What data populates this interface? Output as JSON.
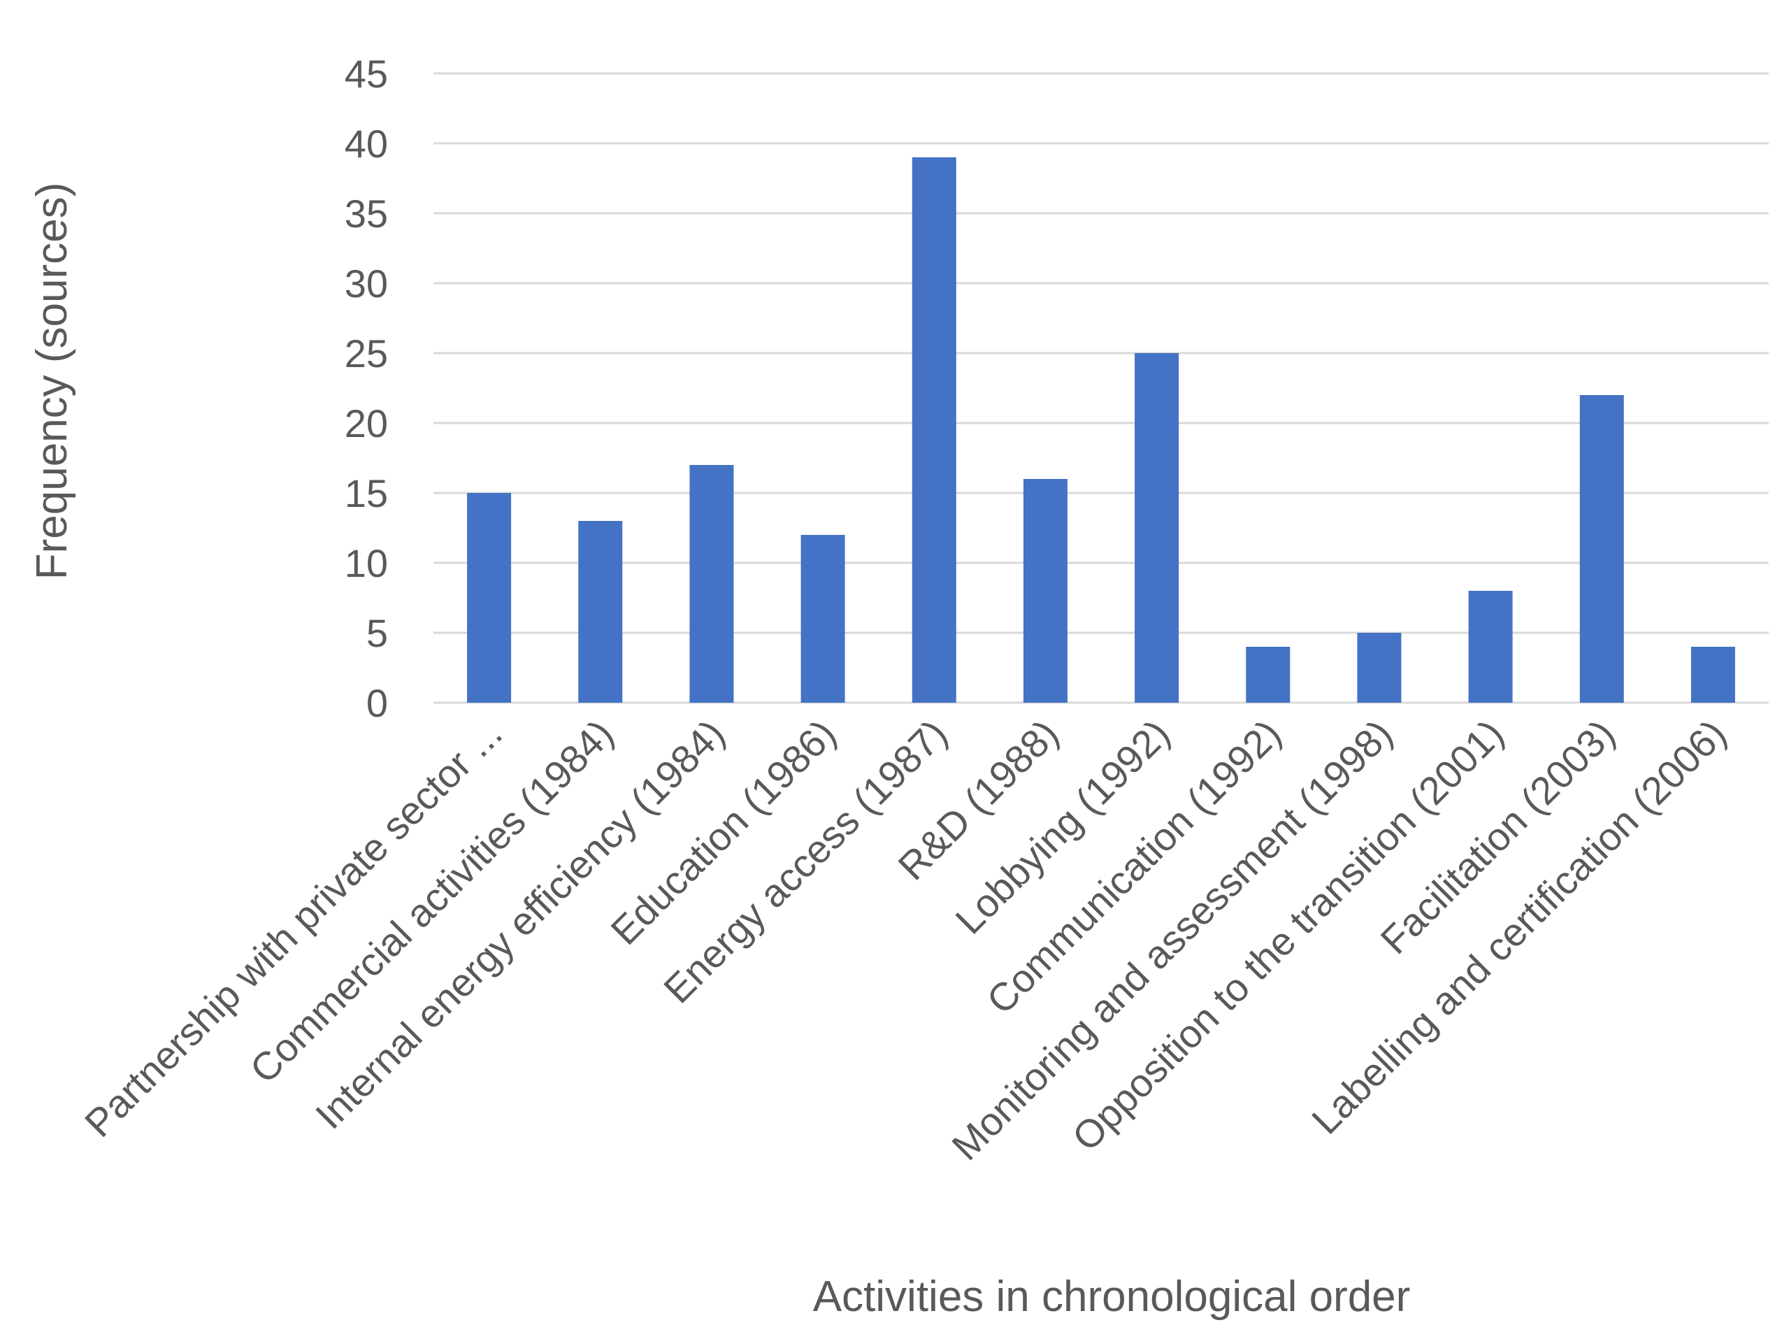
{
  "chart_data": {
    "type": "bar",
    "title": "",
    "xlabel": "Activities in chronological order",
    "ylabel": "Frequency (sources)",
    "ylim": [
      0,
      45
    ],
    "yticks": [
      0,
      5,
      10,
      15,
      20,
      25,
      30,
      35,
      40,
      45
    ],
    "grid": true,
    "legend": "none",
    "bar_color": "#4472c4",
    "categories": [
      "Partnership with private sector ...",
      "Commercial activities (1984)",
      "Internal energy efficiency (1984)",
      "Education (1986)",
      "Energy access (1987)",
      "R&D (1988)",
      "Lobbying (1992)",
      "Communication (1992)",
      "Monitoring and assessment (1998)",
      "Opposition to the transition (2001)",
      "Facilitation (2003)",
      "Labelling and certification (2006)"
    ],
    "values": [
      15,
      13,
      17,
      12,
      39,
      16,
      25,
      4,
      5,
      8,
      22,
      4
    ]
  }
}
